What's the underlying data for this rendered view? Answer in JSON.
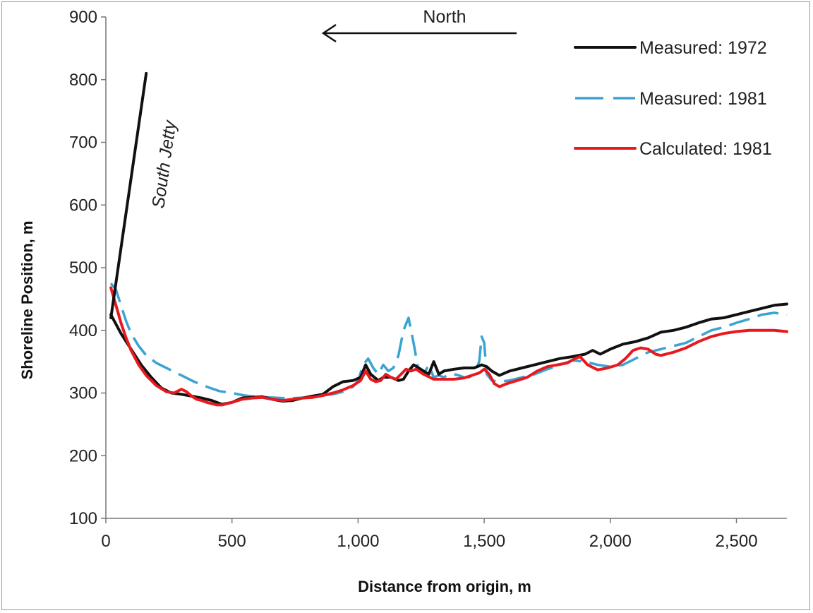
{
  "chart_data": {
    "type": "line",
    "xlabel": "Distance from origin, m",
    "ylabel": "Shoreline Position, m",
    "xlim": [
      0,
      2700
    ],
    "ylim": [
      100,
      900
    ],
    "xticks": [
      0,
      500,
      1000,
      1500,
      2000,
      2500
    ],
    "xtick_labels": [
      "0",
      "500",
      "1,000",
      "1,500",
      "2,000",
      "2,500"
    ],
    "yticks": [
      100,
      200,
      300,
      400,
      500,
      600,
      700,
      800,
      900
    ],
    "ytick_labels": [
      "100",
      "200",
      "300",
      "400",
      "500",
      "600",
      "700",
      "800",
      "900"
    ],
    "grid": false,
    "legend_position": "top-right",
    "annotations": {
      "north": "North",
      "jetty": "South Jetty"
    },
    "jetty": {
      "x": [
        20,
        160
      ],
      "y": [
        420,
        810
      ]
    },
    "series": [
      {
        "name": "Measured: 1972",
        "color": "#111111",
        "style": "solid",
        "x": [
          20,
          60,
          100,
          140,
          180,
          220,
          260,
          300,
          340,
          380,
          420,
          460,
          500,
          540,
          580,
          620,
          660,
          700,
          740,
          780,
          820,
          860,
          900,
          940,
          980,
          1010,
          1030,
          1050,
          1080,
          1100,
          1130,
          1160,
          1180,
          1200,
          1220,
          1240,
          1260,
          1280,
          1300,
          1320,
          1340,
          1380,
          1420,
          1460,
          1490,
          1510,
          1530,
          1560,
          1600,
          1650,
          1700,
          1750,
          1800,
          1850,
          1900,
          1930,
          1960,
          2000,
          2050,
          2100,
          2150,
          2200,
          2250,
          2300,
          2350,
          2400,
          2450,
          2500,
          2550,
          2600,
          2650,
          2700
        ],
        "y": [
          425,
          395,
          370,
          345,
          325,
          308,
          300,
          298,
          295,
          292,
          288,
          282,
          285,
          292,
          293,
          294,
          290,
          287,
          288,
          292,
          295,
          298,
          310,
          318,
          320,
          325,
          345,
          330,
          320,
          325,
          325,
          320,
          322,
          335,
          345,
          340,
          335,
          330,
          350,
          330,
          335,
          338,
          340,
          340,
          345,
          342,
          335,
          328,
          335,
          340,
          345,
          350,
          355,
          358,
          362,
          368,
          362,
          370,
          378,
          382,
          388,
          397,
          400,
          405,
          412,
          418,
          420,
          425,
          430,
          435,
          440,
          442
        ]
      },
      {
        "name": "Measured: 1981",
        "color": "#39a4d1",
        "style": "dashed",
        "x": [
          20,
          40,
          60,
          80,
          100,
          130,
          160,
          200,
          250,
          300,
          350,
          400,
          450,
          500,
          550,
          600,
          650,
          700,
          750,
          800,
          850,
          900,
          950,
          980,
          1000,
          1020,
          1040,
          1060,
          1080,
          1100,
          1120,
          1140,
          1160,
          1180,
          1200,
          1220,
          1240,
          1260,
          1280,
          1300,
          1320,
          1340,
          1360,
          1380,
          1400,
          1420,
          1440,
          1460,
          1480,
          1490,
          1500,
          1510,
          1530,
          1560,
          1600,
          1650,
          1700,
          1750,
          1800,
          1850,
          1900,
          1950,
          2000,
          2050,
          2100,
          2150,
          2200,
          2250,
          2300,
          2350,
          2400,
          2450,
          2500,
          2550,
          2600,
          2650,
          2700
        ],
        "y": [
          475,
          465,
          440,
          415,
          395,
          375,
          360,
          348,
          338,
          328,
          318,
          310,
          303,
          300,
          296,
          294,
          293,
          292,
          292,
          293,
          296,
          298,
          303,
          310,
          320,
          345,
          355,
          340,
          330,
          345,
          335,
          340,
          360,
          400,
          420,
          380,
          335,
          330,
          345,
          325,
          328,
          325,
          330,
          330,
          328,
          325,
          325,
          330,
          350,
          390,
          380,
          330,
          320,
          318,
          320,
          325,
          330,
          338,
          345,
          352,
          350,
          345,
          342,
          345,
          355,
          365,
          370,
          375,
          380,
          390,
          400,
          405,
          412,
          418,
          425,
          428,
          425
        ]
      },
      {
        "name": "Calculated: 1981",
        "color": "#e8191e",
        "style": "solid",
        "x": [
          20,
          40,
          60,
          80,
          100,
          130,
          160,
          200,
          240,
          270,
          300,
          320,
          340,
          360,
          380,
          400,
          420,
          440,
          460,
          480,
          500,
          540,
          580,
          620,
          660,
          700,
          740,
          780,
          820,
          860,
          900,
          940,
          980,
          1010,
          1030,
          1050,
          1070,
          1090,
          1110,
          1130,
          1150,
          1170,
          1190,
          1210,
          1230,
          1260,
          1300,
          1340,
          1380,
          1420,
          1450,
          1480,
          1500,
          1520,
          1540,
          1560,
          1590,
          1630,
          1670,
          1710,
          1750,
          1790,
          1830,
          1860,
          1880,
          1910,
          1950,
          1990,
          2030,
          2060,
          2090,
          2120,
          2150,
          2180,
          2200,
          2250,
          2300,
          2350,
          2400,
          2450,
          2500,
          2550,
          2600,
          2650,
          2700
        ],
        "y": [
          468,
          440,
          412,
          388,
          368,
          345,
          328,
          312,
          302,
          300,
          306,
          302,
          295,
          290,
          288,
          285,
          283,
          281,
          281,
          283,
          285,
          290,
          292,
          293,
          290,
          288,
          290,
          292,
          293,
          296,
          300,
          305,
          312,
          320,
          335,
          322,
          318,
          320,
          330,
          325,
          322,
          330,
          338,
          335,
          338,
          330,
          322,
          322,
          322,
          324,
          328,
          332,
          338,
          330,
          315,
          310,
          315,
          320,
          325,
          335,
          342,
          345,
          348,
          355,
          358,
          345,
          337,
          340,
          345,
          355,
          368,
          372,
          370,
          362,
          360,
          365,
          372,
          382,
          390,
          395,
          398,
          400,
          400,
          400,
          398
        ]
      }
    ]
  }
}
